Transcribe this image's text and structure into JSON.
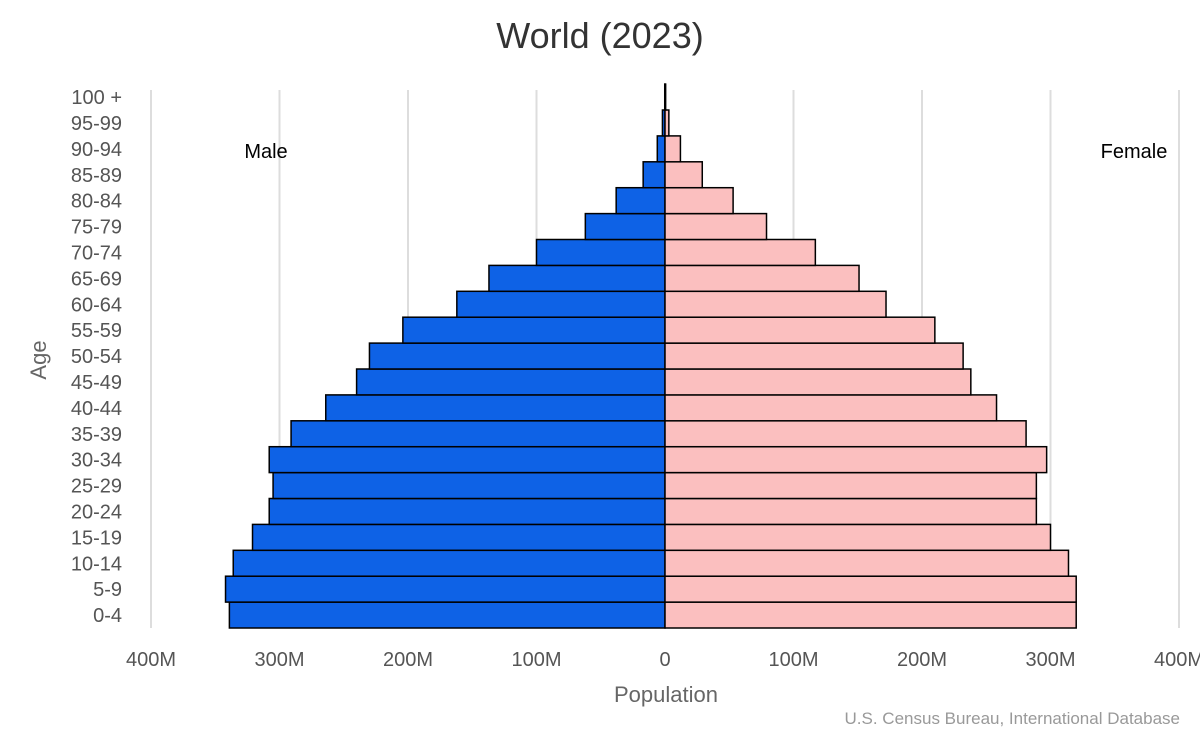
{
  "chart_data": {
    "type": "bar",
    "orientation": "horizontal-population-pyramid",
    "title": "World (2023)",
    "xlabel": "Population",
    "ylabel": "Age",
    "x_tick_labels": [
      "400M",
      "300M",
      "200M",
      "100M",
      "0",
      "100M",
      "200M",
      "300M",
      "400M"
    ],
    "x_ticks": [
      -400,
      -300,
      -200,
      -100,
      0,
      100,
      200,
      300,
      400
    ],
    "xlim": [
      -400,
      400
    ],
    "value_unit": "millions",
    "grid": true,
    "source": "U.S. Census Bureau, International Database",
    "categories": [
      "0-4",
      "5-9",
      "10-14",
      "15-19",
      "20-24",
      "25-29",
      "30-34",
      "35-39",
      "40-44",
      "45-49",
      "50-54",
      "55-59",
      "60-64",
      "65-69",
      "70-74",
      "75-79",
      "80-84",
      "85-89",
      "90-94",
      "95-99",
      "100 +"
    ],
    "series": [
      {
        "name": "Male",
        "side": "left",
        "color": "#0e62e6",
        "values": [
          339,
          342,
          336,
          321,
          308,
          305,
          308,
          291,
          264,
          240,
          230,
          204,
          162,
          137,
          100,
          62,
          38,
          17,
          6,
          2,
          0.2
        ]
      },
      {
        "name": "Female",
        "side": "right",
        "color": "#fbbfbf",
        "values": [
          320,
          320,
          314,
          300,
          289,
          289,
          297,
          281,
          258,
          238,
          232,
          210,
          172,
          151,
          117,
          79,
          53,
          29,
          12,
          3,
          0.5
        ]
      }
    ]
  }
}
